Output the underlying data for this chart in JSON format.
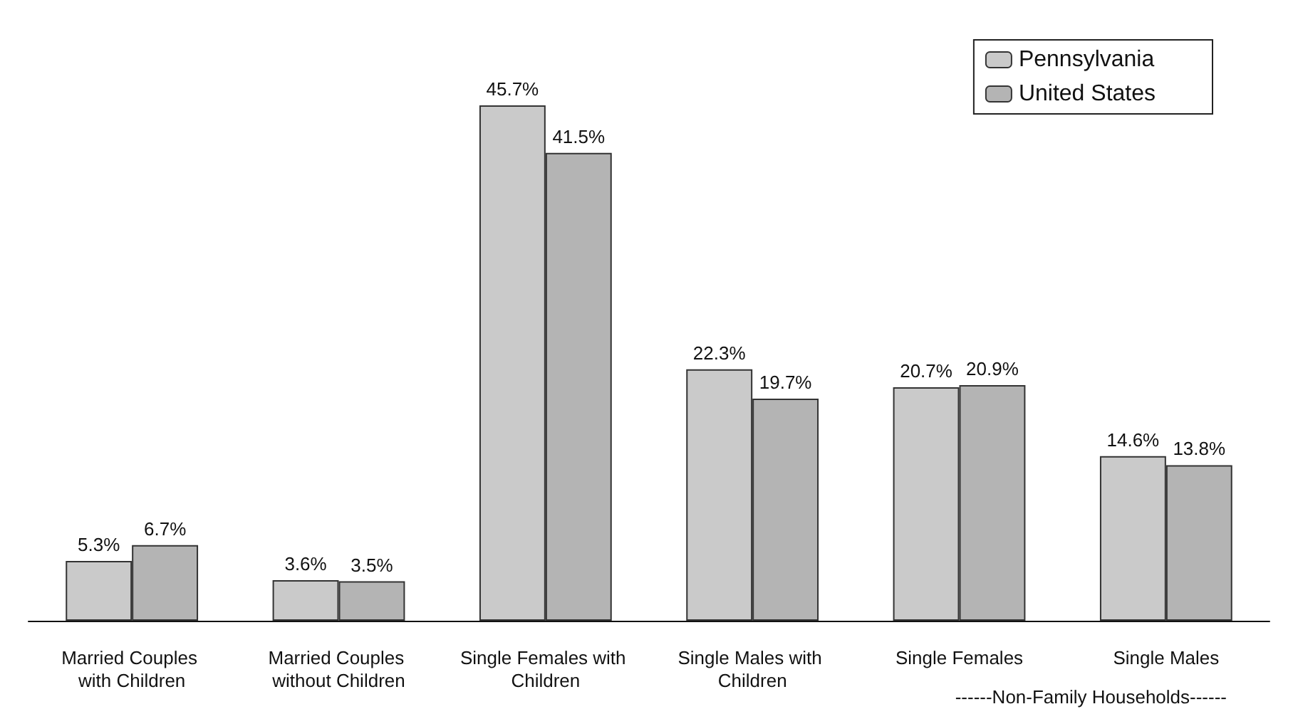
{
  "chart_data": {
    "type": "bar",
    "categories": [
      "Married Couples with Children",
      "Married Couples without Children",
      "Single Females with Children",
      "Single Males with Children",
      "Single Females",
      "Single Males"
    ],
    "series": [
      {
        "name": "Pennsylvania",
        "color": "#cacaca",
        "values": [
          5.3,
          3.6,
          45.7,
          22.3,
          20.7,
          14.6
        ],
        "value_labels": [
          "5.3%",
          "3.6%",
          "45.7%",
          "22.3%",
          "20.7%",
          "14.6%"
        ]
      },
      {
        "name": "United States",
        "color": "#b4b4b4",
        "values": [
          6.7,
          3.5,
          41.5,
          19.7,
          20.9,
          13.8
        ],
        "value_labels": [
          "6.7%",
          "3.5%",
          "41.5%",
          "19.7%",
          "20.9%",
          "13.8%"
        ]
      }
    ],
    "annotations": [
      "------Non-Family Households------"
    ],
    "tick_labels": "x",
    "grid": false,
    "legend": "top right"
  }
}
